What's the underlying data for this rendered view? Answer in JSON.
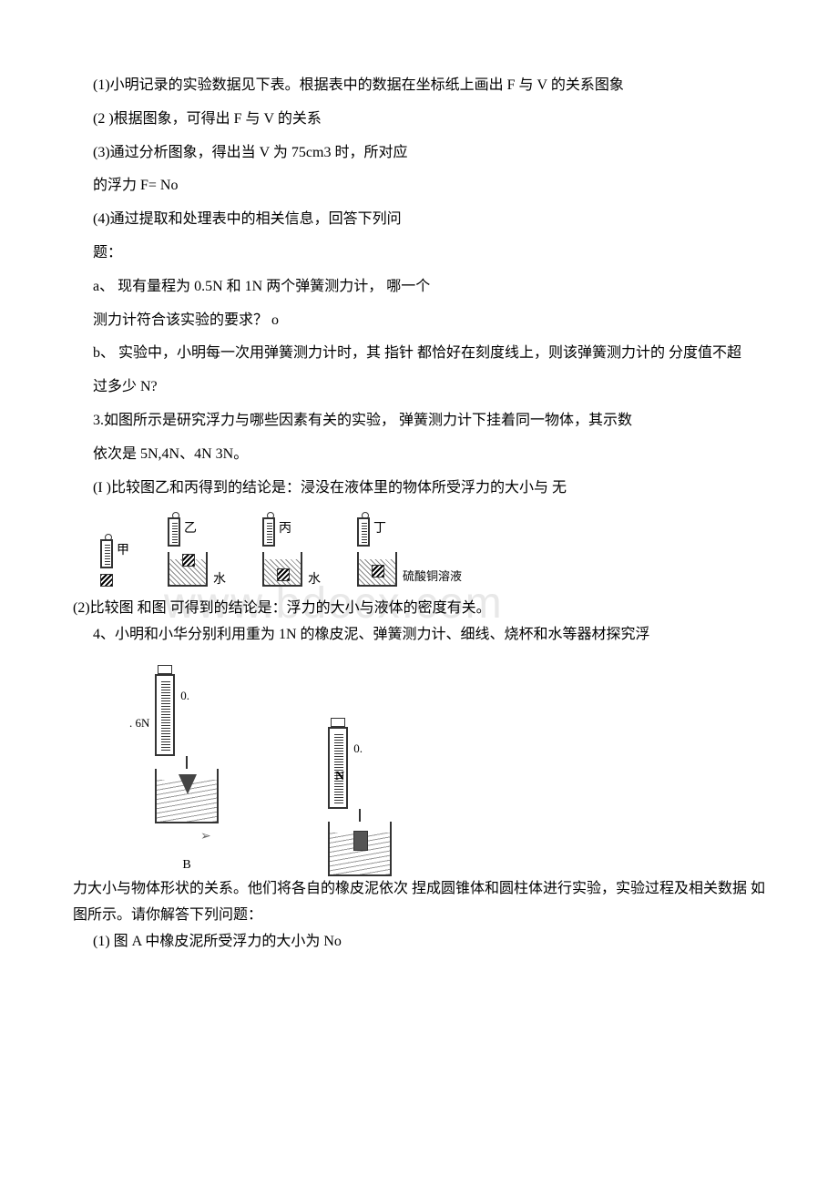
{
  "watermark": "www.bdocx.com",
  "p1": "(1)小明记录的实验数据见下表。根据表中的数据在坐标纸上画出 F 与 V 的关系图象",
  "p2": "(2 )根据图象，可得出 F 与 V 的关系",
  "p3": "(3)通过分析图象，得出当 V 为 75cm3 时，所对应",
  "p4": "的浮力 F= No",
  "p5": "(4)通过提取和处理表中的相关信息，回答下列问",
  "p6": "题：",
  "p7": "a、 现有量程为 0.5N 和 1N 两个弹簧测力计， 哪一个",
  "p8": "测力计符合该实验的要求？ o",
  "p9": "b、 实验中，小明每一次用弹簧测力计时，其 指针 都恰好在刻度线上，则该弹簧测力计的 分度值不超",
  "p10": "过多少 N?",
  "p11": "3.如图所示是研究浮力与哪些因素有关的实验， 弹簧测力计下挂着同一物体，其示数",
  "p12": "依次是 5N,4N、4N 3N。",
  "p13": "(I )比较图乙和丙得到的结论是：浸没在液体里的物体所受浮力的大小与 无",
  "fig1": {
    "labels": {
      "jia": "甲",
      "yi": "乙",
      "bing": "丙",
      "ding": "丁",
      "water": "水",
      "cuso4": "硫酸铜溶液"
    }
  },
  "p14_tail": "(2)比较图 和图 可得到的结论是：浮力的大小与液体的密度有关。",
  "p15": "4、小明和小华分别利用重为 1N 的橡皮泥、弹簧测力计、细线、烧杯和水等器材探究浮",
  "fig2": {
    "left_reading_l": ". 6N",
    "left_reading_r": "0.",
    "right_reading_l": "N",
    "right_reading_r": "0.",
    "caption_b": "B"
  },
  "arrow_symbol": "➢",
  "p16_tail": "力大小与物体形状的关系。他们将各自的橡皮泥依次 捏成圆锥体和圆柱体进行实验，实验过程及相关数据 如图所示。请你解答下列问题：",
  "p17": "(1) 图 A 中橡皮泥所受浮力的大小为 No"
}
